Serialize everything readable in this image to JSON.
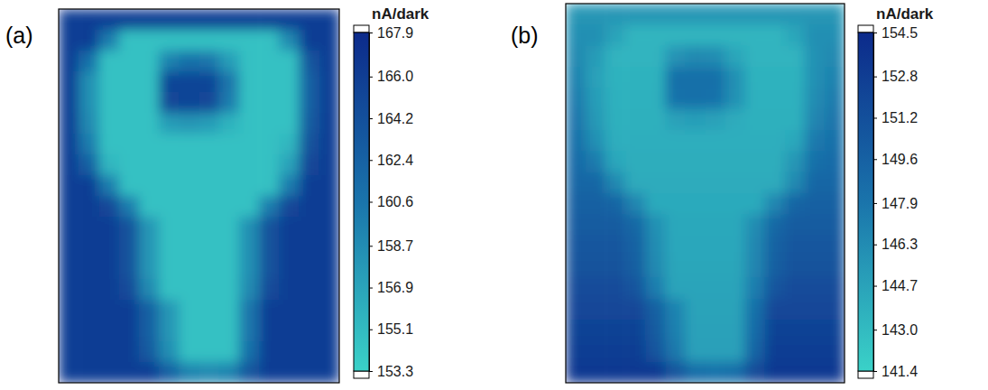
{
  "chart_data": [
    {
      "type": "heatmap",
      "title": "(a)",
      "tick_labels": false,
      "colorbar_title": "nA/dark",
      "colorbar_range": [
        153.3,
        167.9
      ],
      "colorbar_ticks": [
        167.9,
        {
          "value": 166,
          "label": "166.0"
        },
        164.2,
        162.4,
        160.6,
        158.7,
        156.9,
        155.1,
        153.3
      ],
      "cells": [
        [
          165.9,
          165.9,
          165.9,
          165.9,
          165.9,
          165.9,
          165.9,
          165.9,
          165.9,
          165.9,
          165.9,
          165.9,
          165.9,
          165.9
        ],
        [
          165.9,
          165.9,
          160.0,
          154.6,
          154.6,
          154.6,
          154.6,
          154.6,
          154.6,
          154.6,
          154.6,
          159.0,
          165.9,
          165.9
        ],
        [
          165.9,
          161.0,
          154.6,
          154.6,
          154.6,
          159.5,
          161.0,
          160.5,
          157.5,
          154.6,
          154.6,
          154.6,
          163.5,
          165.9
        ],
        [
          165.9,
          158.5,
          154.6,
          154.6,
          154.6,
          165.2,
          165.2,
          165.2,
          160.5,
          154.6,
          154.6,
          154.6,
          162.5,
          165.9
        ],
        [
          165.9,
          158.5,
          154.6,
          154.6,
          154.6,
          165.0,
          165.2,
          165.0,
          160.0,
          154.6,
          154.6,
          154.6,
          162.5,
          165.9
        ],
        [
          165.9,
          159.0,
          154.6,
          154.6,
          154.6,
          157.5,
          158.0,
          157.5,
          155.8,
          154.6,
          154.6,
          154.6,
          163.0,
          165.9
        ],
        [
          165.9,
          160.0,
          154.6,
          154.6,
          154.6,
          154.6,
          154.6,
          154.6,
          154.6,
          154.6,
          154.6,
          155.5,
          164.0,
          165.9
        ],
        [
          165.9,
          162.5,
          155.5,
          154.6,
          154.6,
          154.6,
          154.6,
          154.6,
          154.6,
          154.6,
          154.6,
          157.0,
          165.0,
          165.9
        ],
        [
          165.9,
          165.9,
          160.0,
          154.6,
          154.6,
          154.6,
          154.6,
          154.6,
          154.6,
          154.6,
          154.6,
          160.0,
          165.9,
          165.9
        ],
        [
          165.9,
          165.9,
          165.0,
          160.0,
          154.6,
          154.6,
          154.6,
          154.6,
          154.6,
          154.6,
          160.0,
          165.0,
          165.9,
          165.9
        ],
        [
          165.9,
          165.9,
          165.9,
          164.0,
          158.0,
          154.6,
          154.6,
          154.6,
          154.6,
          158.5,
          164.0,
          165.9,
          165.9,
          165.9
        ],
        [
          165.9,
          165.9,
          165.9,
          164.0,
          158.0,
          154.6,
          154.6,
          154.6,
          154.6,
          158.5,
          164.0,
          165.9,
          165.9,
          165.9
        ],
        [
          165.9,
          165.9,
          165.9,
          164.0,
          158.0,
          154.6,
          154.6,
          154.6,
          154.6,
          158.5,
          164.0,
          165.9,
          165.9,
          165.9
        ],
        [
          165.9,
          165.9,
          165.9,
          164.5,
          159.0,
          154.6,
          154.6,
          154.6,
          154.6,
          159.0,
          164.5,
          165.9,
          165.9,
          165.9
        ],
        [
          165.9,
          165.9,
          165.9,
          165.9,
          162.5,
          158.0,
          154.6,
          154.6,
          154.6,
          160.5,
          165.9,
          165.9,
          165.9,
          165.9
        ],
        [
          165.9,
          165.9,
          165.9,
          165.9,
          162.5,
          158.0,
          154.6,
          154.6,
          154.6,
          160.5,
          165.9,
          165.9,
          165.9,
          165.9
        ],
        [
          165.9,
          165.9,
          165.9,
          165.9,
          163.0,
          158.5,
          154.6,
          154.6,
          154.6,
          161.0,
          165.9,
          165.9,
          165.9,
          165.9
        ],
        [
          165.9,
          165.9,
          165.9,
          165.9,
          165.9,
          162.5,
          159.5,
          159.0,
          159.5,
          163.5,
          165.9,
          165.9,
          165.9,
          165.9
        ]
      ]
    },
    {
      "type": "heatmap",
      "title": "(b)",
      "tick_labels": false,
      "colorbar_title": "nA/dark",
      "colorbar_range": [
        141.4,
        154.5
      ],
      "colorbar_ticks": [
        154.5,
        152.8,
        151.2,
        149.6,
        147.9,
        146.3,
        144.7,
        {
          "value": 143,
          "label": "143.0"
        },
        141.4
      ],
      "cells": [
        [
          145.6,
          145.6,
          145.6,
          145.6,
          145.6,
          145.6,
          145.6,
          145.6,
          145.6,
          145.6,
          145.6,
          145.6,
          145.6,
          145.6
        ],
        [
          146.1,
          146.1,
          144.7,
          143.4,
          143.4,
          143.4,
          143.4,
          143.4,
          143.4,
          143.4,
          143.4,
          144.5,
          146.1,
          146.1
        ],
        [
          146.5,
          145.2,
          143.5,
          143.5,
          143.5,
          145.8,
          146.5,
          146.3,
          144.5,
          143.5,
          143.5,
          143.5,
          145.9,
          146.5
        ],
        [
          147.0,
          144.8,
          143.6,
          143.6,
          143.6,
          148.3,
          148.3,
          148.3,
          146.0,
          143.6,
          143.6,
          143.6,
          146.0,
          147.0
        ],
        [
          147.4,
          145.1,
          143.7,
          143.7,
          143.7,
          148.2,
          148.3,
          148.2,
          145.9,
          143.7,
          143.7,
          143.7,
          146.3,
          147.4
        ],
        [
          147.9,
          145.4,
          143.8,
          143.8,
          143.8,
          144.8,
          145.0,
          144.8,
          144.1,
          143.8,
          143.8,
          143.8,
          146.8,
          147.9
        ],
        [
          148.3,
          146.0,
          143.9,
          143.9,
          143.9,
          143.9,
          143.9,
          143.9,
          143.9,
          143.9,
          143.9,
          144.3,
          147.6,
          148.3
        ],
        [
          148.8,
          147.4,
          144.4,
          144.0,
          144.0,
          144.0,
          144.0,
          144.0,
          144.0,
          144.0,
          144.0,
          145.6,
          148.4,
          148.8
        ],
        [
          149.2,
          149.2,
          146.5,
          144.1,
          144.1,
          144.1,
          144.1,
          144.1,
          144.1,
          144.1,
          144.1,
          146.5,
          149.2,
          149.2
        ],
        [
          149.7,
          149.7,
          149.3,
          146.8,
          144.2,
          144.2,
          144.2,
          144.2,
          144.2,
          144.2,
          146.8,
          149.3,
          149.7,
          149.7
        ],
        [
          150.1,
          150.1,
          150.1,
          149.1,
          146.0,
          144.3,
          144.3,
          144.3,
          144.3,
          146.3,
          149.1,
          150.1,
          150.1,
          150.1
        ],
        [
          150.6,
          150.6,
          150.6,
          149.5,
          146.3,
          144.4,
          144.4,
          144.4,
          144.4,
          146.6,
          149.5,
          150.6,
          150.6,
          150.6
        ],
        [
          151.0,
          151.0,
          151.0,
          149.9,
          146.5,
          144.5,
          144.5,
          144.5,
          144.5,
          146.8,
          149.9,
          151.0,
          151.0,
          151.0
        ],
        [
          151.5,
          151.5,
          151.5,
          150.7,
          147.3,
          144.6,
          144.6,
          144.6,
          144.6,
          147.3,
          150.7,
          151.5,
          151.5,
          151.5
        ],
        [
          151.9,
          151.9,
          151.9,
          151.9,
          149.7,
          146.9,
          144.7,
          144.7,
          144.7,
          148.4,
          151.9,
          151.9,
          151.9,
          151.9
        ],
        [
          152.4,
          152.4,
          152.4,
          152.4,
          150.1,
          147.1,
          144.8,
          144.8,
          144.8,
          148.8,
          152.4,
          152.4,
          152.4,
          152.4
        ],
        [
          152.8,
          152.8,
          152.8,
          152.8,
          150.7,
          147.7,
          144.9,
          144.9,
          144.9,
          149.4,
          152.8,
          152.8,
          152.8,
          152.8
        ],
        [
          153.3,
          153.3,
          153.3,
          153.3,
          153.3,
          150.8,
          148.6,
          148.2,
          148.6,
          151.6,
          153.3,
          153.3,
          153.3,
          153.3
        ]
      ]
    }
  ]
}
